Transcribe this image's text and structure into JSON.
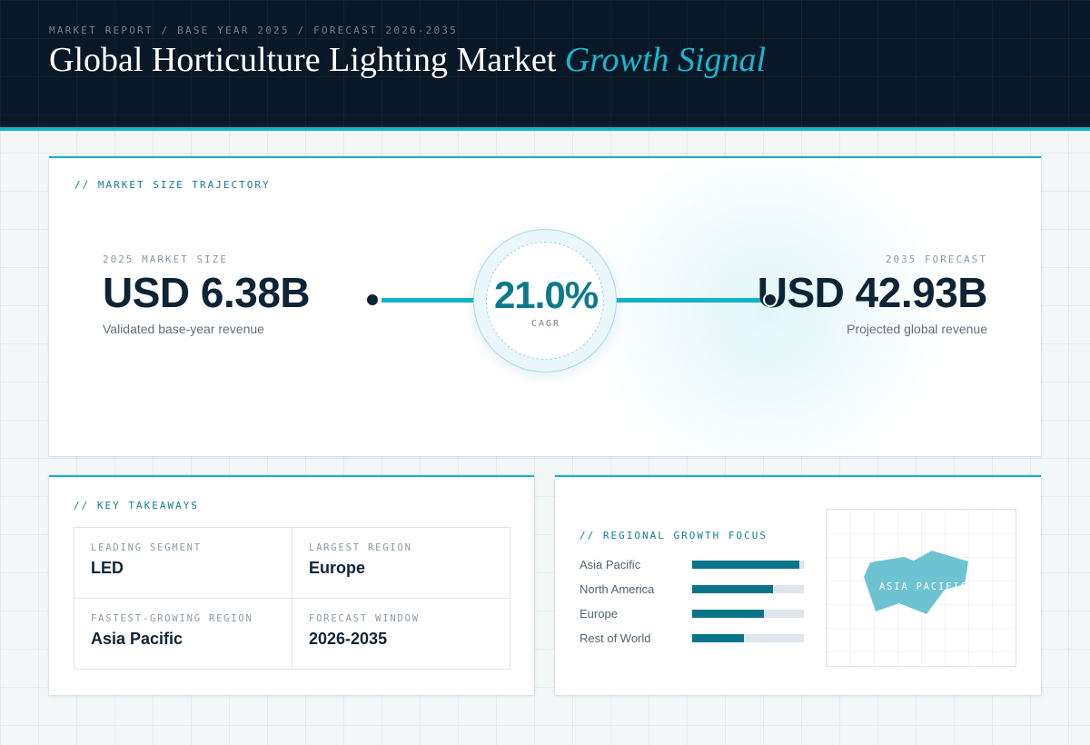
{
  "header": {
    "breadcrumb": "MARKET REPORT / BASE YEAR 2025 / FORECAST 2026-2035",
    "title_main": "Global Horticulture Lighting Market",
    "title_accent": "Growth Signal"
  },
  "trajectory": {
    "section_label": "// MARKET SIZE TRAJECTORY",
    "start": {
      "label": "2025 MARKET SIZE",
      "value": "USD 6.38B",
      "description": "Validated base-year revenue"
    },
    "cagr": {
      "value": "21.0%",
      "label": "CAGR"
    },
    "end": {
      "label": "2035 FORECAST",
      "value": "USD 42.93B",
      "description": "Projected global revenue"
    }
  },
  "takeaways": {
    "section_label": "// KEY TAKEAWAYS",
    "items": [
      {
        "label": "LEADING SEGMENT",
        "value": "LED"
      },
      {
        "label": "LARGEST REGION",
        "value": "Europe"
      },
      {
        "label": "FASTEST-GROWING REGION",
        "value": "Asia Pacific"
      },
      {
        "label": "FORECAST WINDOW",
        "value": "2026-2035"
      }
    ]
  },
  "regional": {
    "section_label": "// REGIONAL GROWTH FOCUS",
    "bars": [
      {
        "name": "Asia Pacific",
        "level": 0.96
      },
      {
        "name": "North America",
        "level": 0.72
      },
      {
        "name": "Europe",
        "level": 0.64
      },
      {
        "name": "Rest of World",
        "level": 0.46
      }
    ],
    "map_label": "ASIA PACIFIC"
  },
  "colors": {
    "accent": "#12b3cc",
    "navy": "#081826",
    "bar": "#0b7488",
    "map_fill": "#6ec3d2"
  }
}
